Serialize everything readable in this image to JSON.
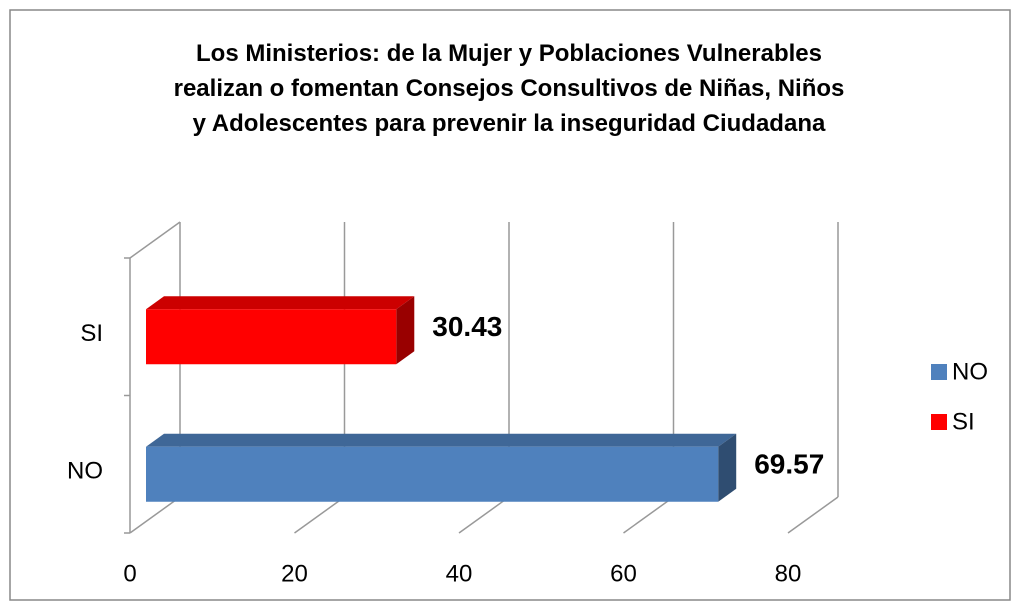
{
  "chart_data": {
    "type": "bar",
    "orientation": "horizontal",
    "title": "Los Ministerios: de la Mujer y Poblaciones Vulnerables realizan o fomentan Consejos Consultivos de Niñas, Niños y Adolescentes para prevenir la inseguridad Ciudadana",
    "categories": [
      "NO",
      "SI"
    ],
    "values": [
      69.57,
      30.43
    ],
    "colors": [
      "#4f81bd",
      "#ff0000"
    ],
    "xlim": [
      0,
      80
    ],
    "xticks": [
      0,
      20,
      40,
      60,
      80
    ],
    "grid": true,
    "legend": "right"
  }
}
